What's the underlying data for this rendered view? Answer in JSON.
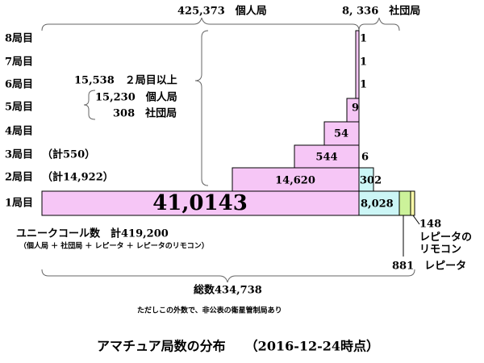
{
  "header": {
    "individual": "425,373　個人局",
    "club": "8, 336　社団局"
  },
  "rows": [
    {
      "label": "8局目",
      "individual": "1"
    },
    {
      "label": "7局目",
      "individual": "1"
    },
    {
      "label": "6局目",
      "individual": "1"
    },
    {
      "label": "5局目",
      "individual": "9"
    },
    {
      "label": "4局目",
      "individual": "54"
    },
    {
      "label": "3局目",
      "note": "（計550）",
      "individual": "544",
      "club": "6"
    },
    {
      "label": "2局目",
      "note": "（計14,922）",
      "individual": "14,620",
      "club": "302"
    },
    {
      "label": "1局目",
      "individual": "41,0143",
      "club": "8,028"
    }
  ],
  "second_plus": {
    "total": "15,538　２局目以上",
    "individual": "15,230　個人局",
    "club": "308　社団局"
  },
  "repeater_remote": {
    "count": "148",
    "label": "レピータの\nリモコン"
  },
  "repeater": "881　レピータ",
  "unique": {
    "label": "ユニークコール数　計419,200",
    "note": "（個人局 ＋ 社団局 ＋ レピータ ＋ レピータのリモコン）"
  },
  "total": "総数434,738",
  "footnote": "ただしこの外数で、非公表の衛星管制局あり",
  "title": "アマチュア局数の分布　　（2016-12-24時点）"
}
